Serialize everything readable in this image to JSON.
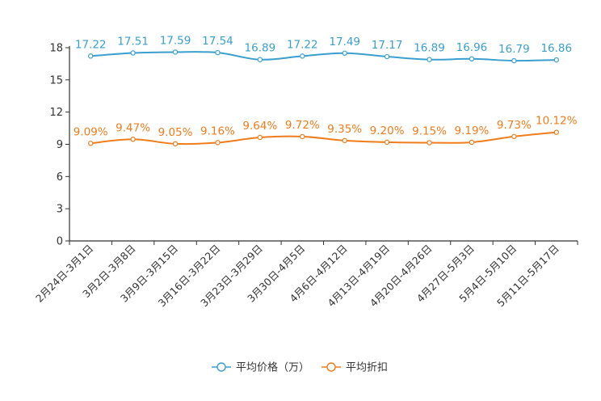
{
  "chart_data": {
    "type": "line",
    "title": "",
    "xlabel": "",
    "ylabel": "",
    "ylim": [
      0,
      18
    ],
    "yticks": [
      0,
      3,
      6,
      9,
      12,
      15,
      18
    ],
    "grid": false,
    "legend_position": "bottom-center",
    "categories": [
      "2月24日-3月1日",
      "3月2日-3月8日",
      "3月9日-3月15日",
      "3月16日-3月22日",
      "3月23日-3月29日",
      "3月30日-4月5日",
      "4月6日-4月12日",
      "4月13日-4月19日",
      "4月20日-4月26日",
      "4月27日-5月3日",
      "5月4日-5月10日",
      "5月11日-5月17日"
    ],
    "series": [
      {
        "name": "平均价格（万）",
        "color": "#3a9fcf",
        "values": [
          17.22,
          17.51,
          17.59,
          17.54,
          16.89,
          17.22,
          17.49,
          17.17,
          16.89,
          16.96,
          16.79,
          16.86
        ],
        "labels": [
          "17.22",
          "17.51",
          "17.59",
          "17.54",
          "16.89",
          "17.22",
          "17.49",
          "17.17",
          "16.89",
          "16.96",
          "16.79",
          "16.86"
        ]
      },
      {
        "name": "平均折扣",
        "color": "#f07c1c",
        "values": [
          9.09,
          9.47,
          9.05,
          9.16,
          9.64,
          9.72,
          9.35,
          9.2,
          9.15,
          9.19,
          9.73,
          10.12
        ],
        "labels": [
          "9.09%",
          "9.47%",
          "9.05%",
          "9.16%",
          "9.64%",
          "9.72%",
          "9.35%",
          "9.20%",
          "9.15%",
          "9.19%",
          "9.73%",
          "10.12%"
        ]
      }
    ]
  }
}
